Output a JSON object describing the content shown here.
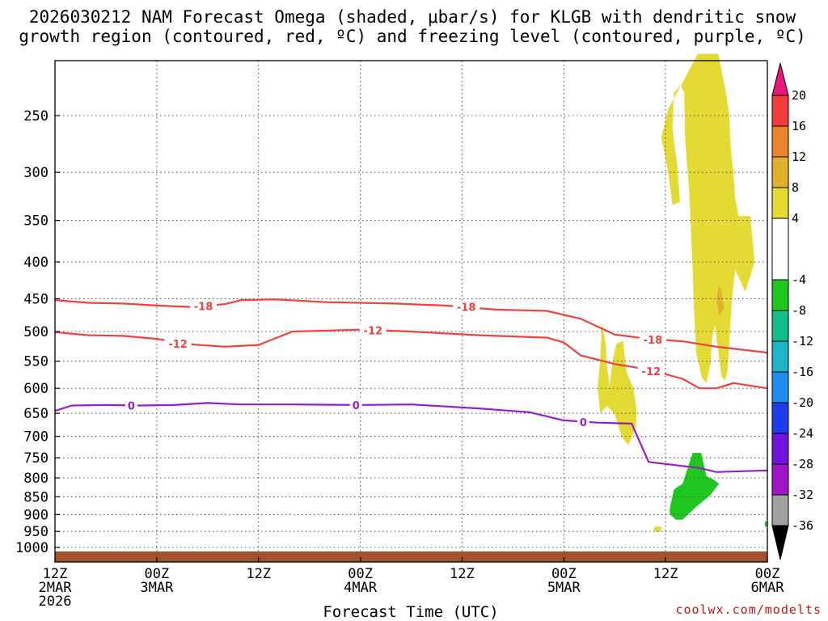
{
  "chart_data": {
    "type": "contour",
    "title_lines": [
      "2026030212 NAM Forecast Omega (shaded, μbar/s) for KLGB with dendritic snow",
      "growth region (contoured, red, ºC) and freezing level (contoured, purple, ºC)"
    ],
    "xlabel": "Forecast Time (UTC)",
    "credit": "coolwx.com/modelts",
    "x_range_hours": [
      0,
      84
    ],
    "y_range_hpa": [
      200,
      1050
    ],
    "x_ticks": [
      {
        "h": 0,
        "lines": [
          "12Z",
          "2MAR",
          "2026"
        ]
      },
      {
        "h": 12,
        "lines": [
          "00Z",
          "3MAR"
        ]
      },
      {
        "h": 24,
        "lines": [
          "12Z"
        ]
      },
      {
        "h": 36,
        "lines": [
          "00Z",
          "4MAR"
        ]
      },
      {
        "h": 48,
        "lines": [
          "12Z"
        ]
      },
      {
        "h": 60,
        "lines": [
          "00Z",
          "5MAR"
        ]
      },
      {
        "h": 72,
        "lines": [
          "12Z"
        ]
      },
      {
        "h": 84,
        "lines": [
          "00Z",
          "6MAR"
        ]
      }
    ],
    "y_ticks": [
      250,
      300,
      350,
      400,
      450,
      500,
      550,
      600,
      650,
      700,
      750,
      800,
      850,
      900,
      950,
      1000
    ],
    "colorbar": {
      "labels": [
        "20",
        "16",
        "12",
        "8",
        "4",
        "-4",
        "-8",
        "-12",
        "-16",
        "-20",
        "-24",
        "-28",
        "-32",
        "-36"
      ],
      "bands": [
        {
          "from": 20,
          "to": 24,
          "color": "#e8177c"
        },
        {
          "from": 16,
          "to": 20,
          "color": "#f03c3c"
        },
        {
          "from": 12,
          "to": 16,
          "color": "#ea822a"
        },
        {
          "from": 8,
          "to": 12,
          "color": "#e3b02e"
        },
        {
          "from": 4,
          "to": 8,
          "color": "#e3db33"
        },
        {
          "from": -4,
          "to": 4,
          "color": "#ffffff"
        },
        {
          "from": -8,
          "to": -4,
          "color": "#1ec81e"
        },
        {
          "from": -12,
          "to": -8,
          "color": "#14be8c"
        },
        {
          "from": -16,
          "to": -12,
          "color": "#1eb4c8"
        },
        {
          "from": -20,
          "to": -16,
          "color": "#1e8cf0"
        },
        {
          "from": -24,
          "to": -20,
          "color": "#1e3cf0"
        },
        {
          "from": -28,
          "to": -24,
          "color": "#6e14dc"
        },
        {
          "from": -32,
          "to": -28,
          "color": "#a014c8"
        },
        {
          "from": -36,
          "to": -32,
          "color": "#a0a0a0"
        },
        {
          "from": -40,
          "to": -36,
          "color": "#000000"
        }
      ]
    },
    "contours": [
      {
        "name": "minus-18",
        "label": "-18",
        "color": "#f04040",
        "points": [
          [
            0,
            452
          ],
          [
            4,
            456
          ],
          [
            8,
            457
          ],
          [
            12,
            460
          ],
          [
            16,
            462
          ],
          [
            20,
            458
          ],
          [
            22,
            452
          ],
          [
            26,
            451
          ],
          [
            32,
            455
          ],
          [
            40,
            457
          ],
          [
            46,
            460
          ],
          [
            52,
            466
          ],
          [
            58,
            468
          ],
          [
            62,
            480
          ],
          [
            66,
            505
          ],
          [
            70,
            512
          ],
          [
            74,
            516
          ],
          [
            78,
            525
          ],
          [
            84,
            535
          ]
        ],
        "labels": [
          {
            "h": 17.5,
            "p": 461
          },
          {
            "h": 48.5,
            "p": 462
          },
          {
            "h": 70.5,
            "p": 513
          }
        ]
      },
      {
        "name": "minus-12",
        "label": "-12",
        "color": "#f04040",
        "points": [
          [
            0,
            501
          ],
          [
            4,
            506
          ],
          [
            8,
            507
          ],
          [
            12,
            512
          ],
          [
            16,
            521
          ],
          [
            20,
            525
          ],
          [
            24,
            522
          ],
          [
            28,
            500
          ],
          [
            36,
            497
          ],
          [
            42,
            500
          ],
          [
            50,
            506
          ],
          [
            58,
            510
          ],
          [
            60,
            518
          ],
          [
            62,
            540
          ],
          [
            66,
            555
          ],
          [
            70,
            565
          ],
          [
            74,
            582
          ],
          [
            76,
            600
          ],
          [
            78,
            600
          ],
          [
            80,
            590
          ],
          [
            84,
            600
          ]
        ],
        "labels": [
          {
            "h": 14.5,
            "p": 520
          },
          {
            "h": 37.5,
            "p": 498
          },
          {
            "h": 70.3,
            "p": 568
          }
        ]
      },
      {
        "name": "zero",
        "label": "0",
        "color": "#9b1cc8",
        "points": [
          [
            0,
            645
          ],
          [
            2,
            634
          ],
          [
            6,
            633
          ],
          [
            10,
            634
          ],
          [
            14,
            633
          ],
          [
            18,
            629
          ],
          [
            22,
            632
          ],
          [
            28,
            632
          ],
          [
            36,
            633
          ],
          [
            42,
            632
          ],
          [
            50,
            640
          ],
          [
            56,
            648
          ],
          [
            60,
            665
          ],
          [
            64,
            670
          ],
          [
            68,
            672
          ],
          [
            70,
            760
          ],
          [
            72,
            765
          ],
          [
            76,
            775
          ],
          [
            78,
            785
          ],
          [
            84,
            781
          ]
        ],
        "labels": [
          {
            "h": 9,
            "p": 634
          },
          {
            "h": 35.5,
            "p": 633
          },
          {
            "h": 62.3,
            "p": 669
          }
        ]
      }
    ],
    "shaded_regions": [
      {
        "name": "yellow-upper-cluster",
        "color": "#e3db33",
        "points": [
          [
            72.3,
            245
          ],
          [
            71.5,
            268
          ],
          [
            72.3,
            300
          ],
          [
            72.8,
            333
          ],
          [
            73.7,
            330
          ],
          [
            73.4,
            295
          ],
          [
            72.8,
            260
          ],
          [
            73,
            232
          ],
          [
            73.8,
            227
          ],
          [
            74.2,
            232
          ],
          [
            74.3,
            270
          ],
          [
            74.8,
            320
          ],
          [
            75,
            365
          ],
          [
            75.2,
            410
          ],
          [
            75.3,
            452
          ],
          [
            75.6,
            535
          ],
          [
            76.3,
            580
          ],
          [
            76.8,
            590
          ],
          [
            77.3,
            555
          ],
          [
            77.5,
            510
          ],
          [
            77.8,
            490
          ],
          [
            78.6,
            578
          ],
          [
            79,
            585
          ],
          [
            79.3,
            568
          ],
          [
            79.8,
            455
          ],
          [
            80.2,
            410
          ],
          [
            81.4,
            440
          ],
          [
            82.5,
            400
          ],
          [
            82,
            345
          ],
          [
            80.6,
            345
          ],
          [
            80.2,
            325
          ],
          [
            80,
            300
          ],
          [
            79.7,
            280
          ],
          [
            79.5,
            250
          ],
          [
            79.2,
            235
          ],
          [
            78.2,
            205
          ],
          [
            75.8,
            205
          ]
        ]
      },
      {
        "name": "yellow-lower-blob",
        "color": "#e3db33",
        "points": [
          [
            64.3,
            650
          ],
          [
            64,
            600
          ],
          [
            64.3,
            545
          ],
          [
            64.5,
            485
          ],
          [
            65,
            525
          ],
          [
            65,
            548
          ],
          [
            65.4,
            595
          ],
          [
            65.8,
            545
          ],
          [
            66.2,
            520
          ],
          [
            67,
            515
          ],
          [
            67.4,
            570
          ],
          [
            68.2,
            600
          ],
          [
            68.6,
            645
          ],
          [
            68.5,
            680
          ],
          [
            67.6,
            720
          ],
          [
            66.8,
            700
          ],
          [
            66,
            652
          ],
          [
            65.1,
            635
          ]
        ]
      },
      {
        "name": "orange-spot",
        "color": "#e3b02e",
        "points": [
          [
            78.3,
            430
          ],
          [
            78.6,
            440
          ],
          [
            78.9,
            465
          ],
          [
            78.3,
            475
          ],
          [
            78,
            452
          ]
        ]
      },
      {
        "name": "yellow-small-dot",
        "color": "#e3db33",
        "points": [
          [
            70.9,
            934
          ],
          [
            71.6,
            936
          ],
          [
            71.4,
            950
          ],
          [
            70.9,
            952
          ],
          [
            70.5,
            943
          ]
        ]
      },
      {
        "name": "green-region",
        "color": "#1ec81e",
        "points": [
          [
            72.5,
            880
          ],
          [
            73,
            830
          ],
          [
            74,
            815
          ],
          [
            75.2,
            738
          ],
          [
            76.2,
            738
          ],
          [
            76.8,
            795
          ],
          [
            77.7,
            805
          ],
          [
            78.3,
            815
          ],
          [
            77.3,
            845
          ],
          [
            75.5,
            880
          ],
          [
            74,
            915
          ],
          [
            73.2,
            915
          ],
          [
            72.5,
            898
          ]
        ]
      },
      {
        "name": "green-tiny-square",
        "color": "#1ec81e",
        "points": [
          [
            83.7,
            920
          ],
          [
            84,
            920
          ],
          [
            84,
            935
          ],
          [
            83.7,
            935
          ]
        ]
      }
    ]
  }
}
